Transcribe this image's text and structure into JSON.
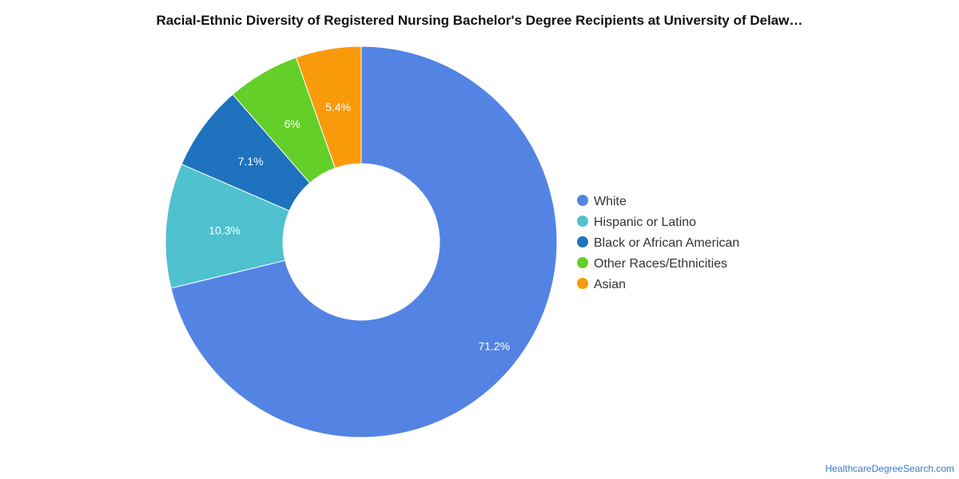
{
  "title": "Racial-Ethnic Diversity of Registered Nursing Bachelor's Degree Recipients at University of Delaw…",
  "credit": "HealthcareDegreeSearch.com",
  "chart_data": {
    "type": "pie",
    "donut": true,
    "title": "Racial-Ethnic Diversity of Registered Nursing Bachelor's Degree Recipients at University of Delaw…",
    "legend_position": "right",
    "categories": [
      "White",
      "Hispanic or Latino",
      "Black or African American",
      "Other Races/Ethnicities",
      "Asian"
    ],
    "values": [
      71.2,
      10.3,
      7.1,
      6.0,
      5.4
    ],
    "labels": [
      "71.2%",
      "10.3%",
      "7.1%",
      "6%",
      "5.4%"
    ],
    "colors": [
      "#5384e3",
      "#4fc1cf",
      "#1f72bd",
      "#63cf28",
      "#f99a0b"
    ]
  }
}
